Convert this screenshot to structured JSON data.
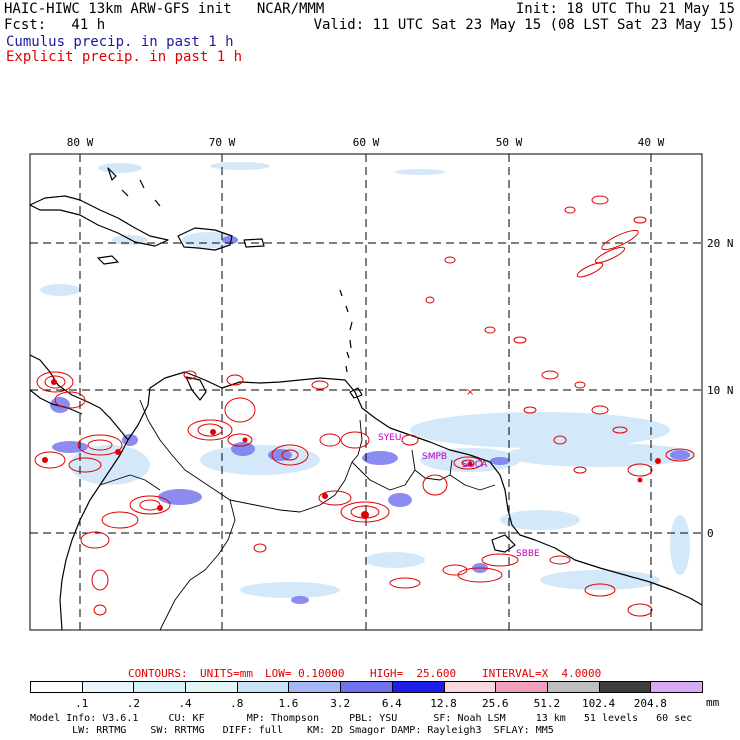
{
  "header": {
    "title_left": "HAIC-HIWC 13km ARW-GFS init   NCAR/MMM",
    "init": "Init: 18 UTC Thu 21 May 15",
    "fcst": "Fcst:   41 h",
    "valid": "Valid: 11 UTC Sat 23 May 15 (08 LST Sat 23 May 15)",
    "legend_cumulus": "Cumulus precip. in past 1 h",
    "legend_explicit": "Explicit precip. in past 1 h",
    "colors": {
      "cumulus": "#1a1aa0",
      "explicit": "#e00000"
    }
  },
  "map": {
    "lon_labels": [
      "80 W",
      "70 W",
      "60 W",
      "50 W",
      "40 W"
    ],
    "lat_labels": [
      "20 N",
      "10 N",
      "0"
    ],
    "region_labels": [
      "SYEU",
      "SMPB",
      "SOCA",
      "SBBE"
    ]
  },
  "contours_line": {
    "label": "CONTOURS:",
    "units": "UNITS=mm",
    "low": "LOW= 0.10000",
    "high": "HIGH=  25.600",
    "interval": "INTERVAL=X  4.0000"
  },
  "colorbar": {
    "labels": [
      ".1",
      ".2",
      ".4",
      ".8",
      "1.6",
      "3.2",
      "6.4",
      "12.8",
      "25.6",
      "51.2",
      "102.4",
      "204.8"
    ],
    "unit": "mm",
    "colors": [
      "#ffffff",
      "#eaf6fb",
      "#d8f0f8",
      "#e2f6f6",
      "#c8e2f6",
      "#a6b6f4",
      "#7272f0",
      "#1e1eea",
      "#f8d8dc",
      "#f0a0bc",
      "#bebebe",
      "#3e3e3e",
      "#d8aaf4"
    ]
  },
  "footer": {
    "line1": "Model Info: V3.6.1     CU: KF       MP: Thompson     PBL: YSU      SF: Noah LSM     13 km   51 levels   60 sec",
    "line2": "       LW: RRTMG    SW: RRTMG   DIFF: full    KM: 2D Smagor DAMP: Rayleigh3  SFLAY: MM5"
  }
}
